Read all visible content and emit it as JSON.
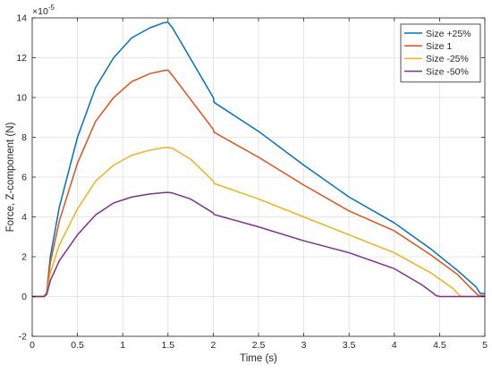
{
  "chart_data": {
    "type": "line",
    "title": "",
    "xlabel": "Time (s)",
    "ylabel": "Force, Z-component (N)",
    "exponent_label": "×10",
    "exponent_power": "-5",
    "xlim": [
      0,
      5
    ],
    "ylim": [
      -2,
      14
    ],
    "y_scale_factor": 1e-05,
    "grid": true,
    "legend_position": "top-right",
    "x_ticks": [
      0,
      0.5,
      1,
      1.5,
      2,
      2.5,
      3,
      3.5,
      4,
      4.5,
      5
    ],
    "y_ticks": [
      -2,
      0,
      2,
      4,
      6,
      8,
      10,
      12,
      14
    ],
    "x_tick_labels": [
      "0",
      "0.5",
      "1",
      "1.5",
      "2",
      "2.5",
      "3",
      "3.5",
      "4",
      "4.5",
      "5"
    ],
    "y_tick_labels": [
      "-2",
      "0",
      "2",
      "4",
      "6",
      "8",
      "10",
      "12",
      "14"
    ],
    "series": [
      {
        "name": "Size +25%",
        "color": "#0072BD",
        "x": [
          0,
          0.13,
          0.16,
          0.2,
          0.3,
          0.5,
          0.7,
          0.9,
          1.1,
          1.3,
          1.45,
          1.5,
          1.55,
          2.0,
          2.01,
          2.5,
          3.0,
          3.5,
          4.0,
          4.4,
          4.7,
          4.9,
          4.95,
          5.0
        ],
        "y": [
          0,
          0,
          0.2,
          2.0,
          4.5,
          8.0,
          10.5,
          12.0,
          13.0,
          13.5,
          13.75,
          13.78,
          13.5,
          10.0,
          9.75,
          8.3,
          6.6,
          5.0,
          3.7,
          2.4,
          1.3,
          0.5,
          0.15,
          0.15
        ]
      },
      {
        "name": "Size 1",
        "color": "#D95319",
        "x": [
          0,
          0.13,
          0.16,
          0.2,
          0.3,
          0.5,
          0.7,
          0.9,
          1.1,
          1.3,
          1.45,
          1.5,
          1.55,
          2.0,
          2.01,
          2.5,
          3.0,
          3.5,
          4.0,
          4.4,
          4.7,
          4.85,
          4.93,
          5.0
        ],
        "y": [
          0,
          0,
          0.2,
          1.7,
          3.8,
          6.7,
          8.8,
          10.0,
          10.8,
          11.2,
          11.35,
          11.38,
          11.1,
          8.4,
          8.25,
          7.0,
          5.6,
          4.3,
          3.3,
          2.1,
          1.1,
          0.4,
          0.05,
          0.05
        ]
      },
      {
        "name": "Size -25%",
        "color": "#EDB120",
        "x": [
          0,
          0.13,
          0.16,
          0.2,
          0.3,
          0.5,
          0.7,
          0.9,
          1.1,
          1.3,
          1.45,
          1.5,
          1.55,
          1.75,
          2.0,
          2.01,
          2.5,
          3.0,
          3.5,
          4.0,
          4.4,
          4.65,
          4.72,
          4.75,
          5.0
        ],
        "y": [
          0,
          0,
          0.15,
          1.2,
          2.6,
          4.4,
          5.8,
          6.6,
          7.1,
          7.35,
          7.48,
          7.5,
          7.45,
          6.9,
          5.8,
          5.68,
          4.9,
          4.0,
          3.1,
          2.2,
          1.2,
          0.4,
          0.05,
          0,
          0
        ]
      },
      {
        "name": "Size -50%",
        "color": "#7E2F8E",
        "x": [
          0,
          0.13,
          0.16,
          0.2,
          0.3,
          0.5,
          0.7,
          0.9,
          1.1,
          1.3,
          1.45,
          1.5,
          1.55,
          1.75,
          2.0,
          2.01,
          2.5,
          3.0,
          3.5,
          4.0,
          4.3,
          4.42,
          4.46,
          4.5,
          5.0
        ],
        "y": [
          0,
          0,
          0.1,
          0.8,
          1.8,
          3.1,
          4.1,
          4.7,
          5.0,
          5.15,
          5.22,
          5.23,
          5.2,
          4.9,
          4.2,
          4.12,
          3.5,
          2.8,
          2.2,
          1.4,
          0.6,
          0.2,
          0.05,
          0,
          0
        ]
      }
    ]
  }
}
